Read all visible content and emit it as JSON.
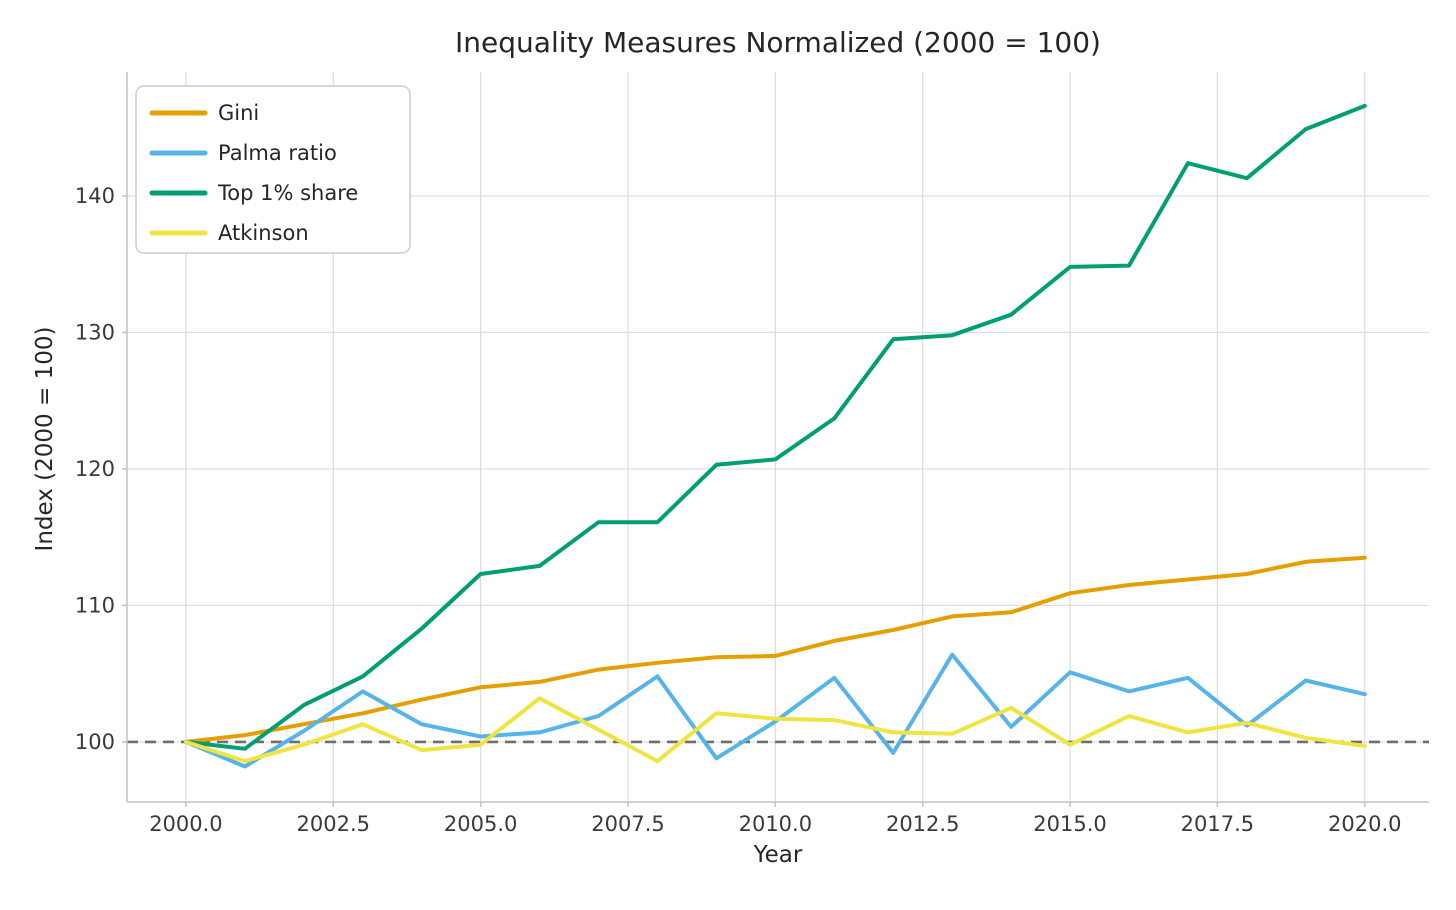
{
  "chart_data": {
    "type": "line",
    "title": "Inequality Measures Normalized (2000 = 100)",
    "xlabel": "Year",
    "ylabel": "Index (2000 = 100)",
    "x": [
      2000,
      2001,
      2002,
      2003,
      2004,
      2005,
      2006,
      2007,
      2008,
      2009,
      2010,
      2011,
      2012,
      2013,
      2014,
      2015,
      2016,
      2017,
      2018,
      2019,
      2020
    ],
    "series": [
      {
        "name": "Gini",
        "color": "#E69F00",
        "values": [
          100,
          100.5,
          101.3,
          102.1,
          103.1,
          104.0,
          104.4,
          105.3,
          105.8,
          106.2,
          106.3,
          107.4,
          108.2,
          109.2,
          109.5,
          110.9,
          111.5,
          111.9,
          112.3,
          113.2,
          113.5
        ]
      },
      {
        "name": "Palma ratio",
        "color": "#56B4E9",
        "values": [
          100,
          98.2,
          100.8,
          103.7,
          101.3,
          100.4,
          100.7,
          101.9,
          104.8,
          98.8,
          101.5,
          104.7,
          99.2,
          106.4,
          101.1,
          105.1,
          103.7,
          104.7,
          101.2,
          104.5,
          103.5
        ]
      },
      {
        "name": "Top 1% share",
        "color": "#009E73",
        "values": [
          100,
          99.5,
          102.7,
          104.8,
          108.3,
          112.3,
          112.9,
          116.1,
          116.1,
          120.3,
          120.7,
          123.7,
          129.5,
          129.8,
          131.3,
          134.8,
          134.9,
          142.4,
          141.3,
          144.9,
          146.6
        ]
      },
      {
        "name": "Atkinson",
        "color": "#F0E442",
        "values": [
          100,
          98.6,
          99.8,
          101.3,
          99.4,
          99.8,
          103.2,
          100.9,
          98.6,
          102.1,
          101.7,
          101.6,
          100.7,
          100.6,
          102.5,
          99.8,
          101.9,
          100.7,
          101.4,
          100.3,
          99.7
        ]
      }
    ],
    "xticks": [
      {
        "value": 2000,
        "label": "2000.0"
      },
      {
        "value": 2002.5,
        "label": "2002.5"
      },
      {
        "value": 2005,
        "label": "2005.0"
      },
      {
        "value": 2007.5,
        "label": "2007.5"
      },
      {
        "value": 2010,
        "label": "2010.0"
      },
      {
        "value": 2012.5,
        "label": "2012.5"
      },
      {
        "value": 2015,
        "label": "2015.0"
      },
      {
        "value": 2017.5,
        "label": "2017.5"
      },
      {
        "value": 2020,
        "label": "2020.0"
      }
    ],
    "yticks": [
      {
        "value": 100,
        "label": "100"
      },
      {
        "value": 110,
        "label": "110"
      },
      {
        "value": 120,
        "label": "120"
      },
      {
        "value": 130,
        "label": "130"
      },
      {
        "value": 140,
        "label": "140"
      }
    ],
    "xlim": [
      1999.0,
      2021.09
    ],
    "ylim": [
      95.6,
      149.08
    ],
    "grid": true,
    "legend_position": "upper left",
    "reference_line": {
      "y": 100,
      "style": "dashed",
      "color": "#6f6f6f"
    },
    "colors": {
      "grid": "#dcdcdc",
      "spine": "#c2c2c2",
      "tick_text": "#3a3a3a",
      "text": "#262626",
      "background": "#ffffff",
      "legend_border": "#cccccc",
      "legend_background": "#ffffff"
    }
  }
}
